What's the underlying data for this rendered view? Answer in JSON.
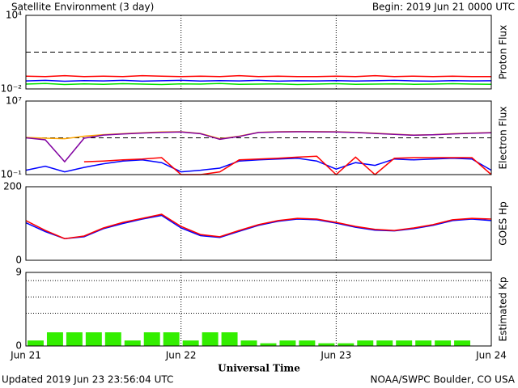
{
  "title": "Satellite Environment (3 day)",
  "begin": "Begin:  2019 Jun 21 0000 UTC",
  "updated": "Updated 2019 Jun 23 23:56:04 UTC",
  "credit": "NOAA/SWPC Boulder, CO USA",
  "x_axis": {
    "label": "Universal Time",
    "xlim": [
      0,
      72
    ],
    "xticks": [
      {
        "value": 0,
        "label": "Jun 21"
      },
      {
        "value": 24,
        "label": "Jun 22"
      },
      {
        "value": 48,
        "label": "Jun 23"
      },
      {
        "value": 72,
        "label": "Jun 24"
      }
    ]
  },
  "chart_data": [
    {
      "type": "line",
      "ylabel": "Proton Flux",
      "log": true,
      "ylim": [
        0.01,
        10000
      ],
      "yticks": [
        {
          "value": 10000,
          "label": "10⁴"
        },
        {
          "value": 0.01,
          "label": "10⁻²"
        }
      ],
      "reference_lines": [
        10
      ],
      "reference_style": "dashed",
      "x": [
        0,
        3,
        6,
        9,
        12,
        15,
        18,
        21,
        24,
        27,
        30,
        33,
        36,
        39,
        42,
        45,
        48,
        51,
        54,
        57,
        60,
        63,
        66,
        69,
        72
      ],
      "series": [
        {
          "color": "#ff0000",
          "values": [
            0.11,
            0.1,
            0.12,
            0.1,
            0.11,
            0.1,
            0.12,
            0.11,
            0.1,
            0.11,
            0.1,
            0.12,
            0.1,
            0.11,
            0.1,
            0.1,
            0.11,
            0.1,
            0.12,
            0.1,
            0.11,
            0.1,
            0.11,
            0.1,
            0.1
          ]
        },
        {
          "color": "#0000ff",
          "values": [
            0.045,
            0.05,
            0.042,
            0.048,
            0.045,
            0.05,
            0.043,
            0.046,
            0.05,
            0.044,
            0.047,
            0.045,
            0.05,
            0.043,
            0.046,
            0.045,
            0.048,
            0.044,
            0.046,
            0.05,
            0.045,
            0.043,
            0.047,
            0.045,
            0.046
          ]
        },
        {
          "color": "#00e000",
          "values": [
            0.025,
            0.028,
            0.023,
            0.026,
            0.024,
            0.027,
            0.025,
            0.023,
            0.026,
            0.025,
            0.028,
            0.024,
            0.025,
            0.026,
            0.023,
            0.025,
            0.027,
            0.024,
            0.025,
            0.026,
            0.024,
            0.025,
            0.027,
            0.025,
            0.024
          ]
        }
      ]
    },
    {
      "type": "line",
      "ylabel": "Electron Flux",
      "log": true,
      "ylim": [
        0.1,
        10000000
      ],
      "yticks": [
        {
          "value": 10000000,
          "label": "10⁷"
        },
        {
          "value": 0.1,
          "label": "10⁻¹"
        }
      ],
      "reference_lines": [
        1000
      ],
      "reference_style": "dashed",
      "x": [
        0,
        3,
        6,
        9,
        12,
        15,
        18,
        21,
        24,
        27,
        30,
        33,
        36,
        39,
        42,
        45,
        48,
        51,
        54,
        57,
        60,
        63,
        66,
        69,
        72
      ],
      "series": [
        {
          "color": "#ffa500",
          "values": [
            1100,
            900,
            800,
            1500,
            2200,
            2800,
            3500,
            4300,
            4600,
            3000,
            800,
            1500,
            4000,
            4600,
            4800,
            4700,
            4600,
            4000,
            3200,
            2500,
            2000,
            2200,
            2800,
            3300,
            3700
          ]
        },
        {
          "color": "#8000a0",
          "values": [
            1000,
            600,
            2.5,
            900,
            2000,
            2600,
            3300,
            4000,
            4300,
            2800,
            700,
            1400,
            3800,
            4400,
            4600,
            4500,
            4400,
            3800,
            3000,
            2400,
            1900,
            2100,
            2600,
            3100,
            3500
          ]
        },
        {
          "color": "#0000ff",
          "values": [
            0.3,
            0.8,
            0.2,
            0.6,
            1.5,
            3,
            4,
            2,
            0.2,
            0.3,
            0.5,
            3,
            4,
            5,
            6,
            3,
            0.4,
            2,
            1,
            5,
            4,
            5,
            6,
            5,
            0.3
          ]
        },
        {
          "color": "#ff0000",
          "values": [
            null,
            null,
            null,
            2.5,
            3,
            4,
            5,
            7,
            0.1,
            0.1,
            0.2,
            4,
            5,
            6,
            8,
            10,
            0.1,
            8,
            0.1,
            6,
            7,
            7,
            7,
            7,
            0.1
          ]
        }
      ]
    },
    {
      "type": "line",
      "ylabel": "GOES Hp",
      "log": false,
      "ylim": [
        0,
        200
      ],
      "yticks": [
        200,
        0
      ],
      "reference_lines": [],
      "reference_style": "dashed",
      "x": [
        0,
        3,
        6,
        9,
        12,
        15,
        18,
        21,
        24,
        27,
        30,
        33,
        36,
        39,
        42,
        45,
        48,
        51,
        54,
        57,
        60,
        63,
        66,
        69,
        72
      ],
      "series": [
        {
          "color": "#0000ff",
          "values": [
            102,
            78,
            59,
            64,
            86,
            100,
            112,
            122,
            88,
            67,
            62,
            79,
            95,
            106,
            112,
            110,
            101,
            90,
            82,
            80,
            86,
            95,
            108,
            112,
            108
          ]
        },
        {
          "color": "#ff0000",
          "values": [
            108,
            81,
            59,
            66,
            88,
            103,
            114,
            125,
            92,
            70,
            64,
            81,
            97,
            108,
            114,
            112,
            103,
            92,
            84,
            81,
            88,
            97,
            110,
            114,
            112
          ]
        }
      ]
    },
    {
      "type": "bar",
      "ylabel": "Estimated Kp",
      "log": false,
      "ylim": [
        0,
        9
      ],
      "yticks": [
        9,
        0
      ],
      "reference_lines": [
        4,
        6,
        8
      ],
      "reference_style": "dotted",
      "x": [
        0,
        3,
        6,
        9,
        12,
        15,
        18,
        21,
        24,
        27,
        30,
        33,
        36,
        39,
        42,
        45,
        48,
        51,
        54,
        57,
        60,
        63,
        66
      ],
      "series": [
        {
          "color": "#33ee00",
          "values": [
            0.67,
            1.67,
            1.67,
            1.67,
            1.67,
            0.67,
            1.67,
            1.67,
            0.67,
            1.67,
            1.67,
            0.67,
            0.33,
            0.67,
            0.67,
            0.33,
            0.33,
            0.67,
            0.67,
            0.67,
            0.67,
            0.67,
            0.67
          ]
        }
      ]
    }
  ]
}
